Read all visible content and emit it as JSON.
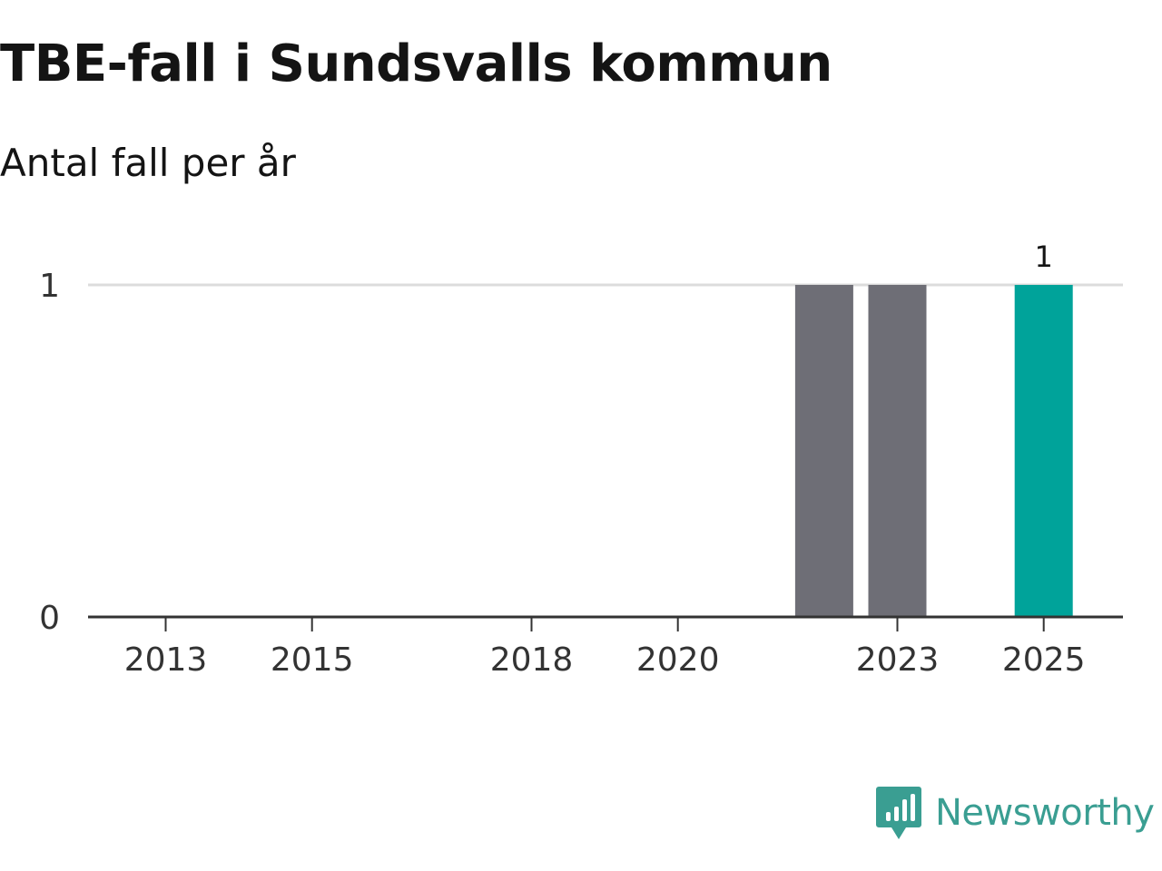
{
  "chart_data": {
    "type": "bar",
    "title": "TBE-fall i Sundsvalls kommun",
    "subtitle": "Antal fall per år",
    "xlabel": "",
    "ylabel": "",
    "categories": [
      2013,
      2014,
      2015,
      2016,
      2017,
      2018,
      2019,
      2020,
      2021,
      2022,
      2023,
      2024,
      2025
    ],
    "values": [
      0,
      0,
      0,
      0,
      0,
      0,
      0,
      0,
      0,
      1,
      1,
      0,
      1
    ],
    "x_tick_labels": [
      "2013",
      "2015",
      "2018",
      "2020",
      "2023",
      "2025"
    ],
    "y_ticks": [
      0,
      1
    ],
    "ylim": [
      0,
      1
    ],
    "grid": true,
    "highlight_category": 2025,
    "data_labels": [
      {
        "category": 2025,
        "text": "1"
      }
    ],
    "colors": {
      "bar": "#6e6e76",
      "highlight": "#00a39a",
      "gridline": "#dcdcdc",
      "axis": "#333333"
    }
  },
  "brand": {
    "name": "Newsworthy",
    "icon": "newsworthy-logo-icon",
    "color": "#3a9e92"
  }
}
